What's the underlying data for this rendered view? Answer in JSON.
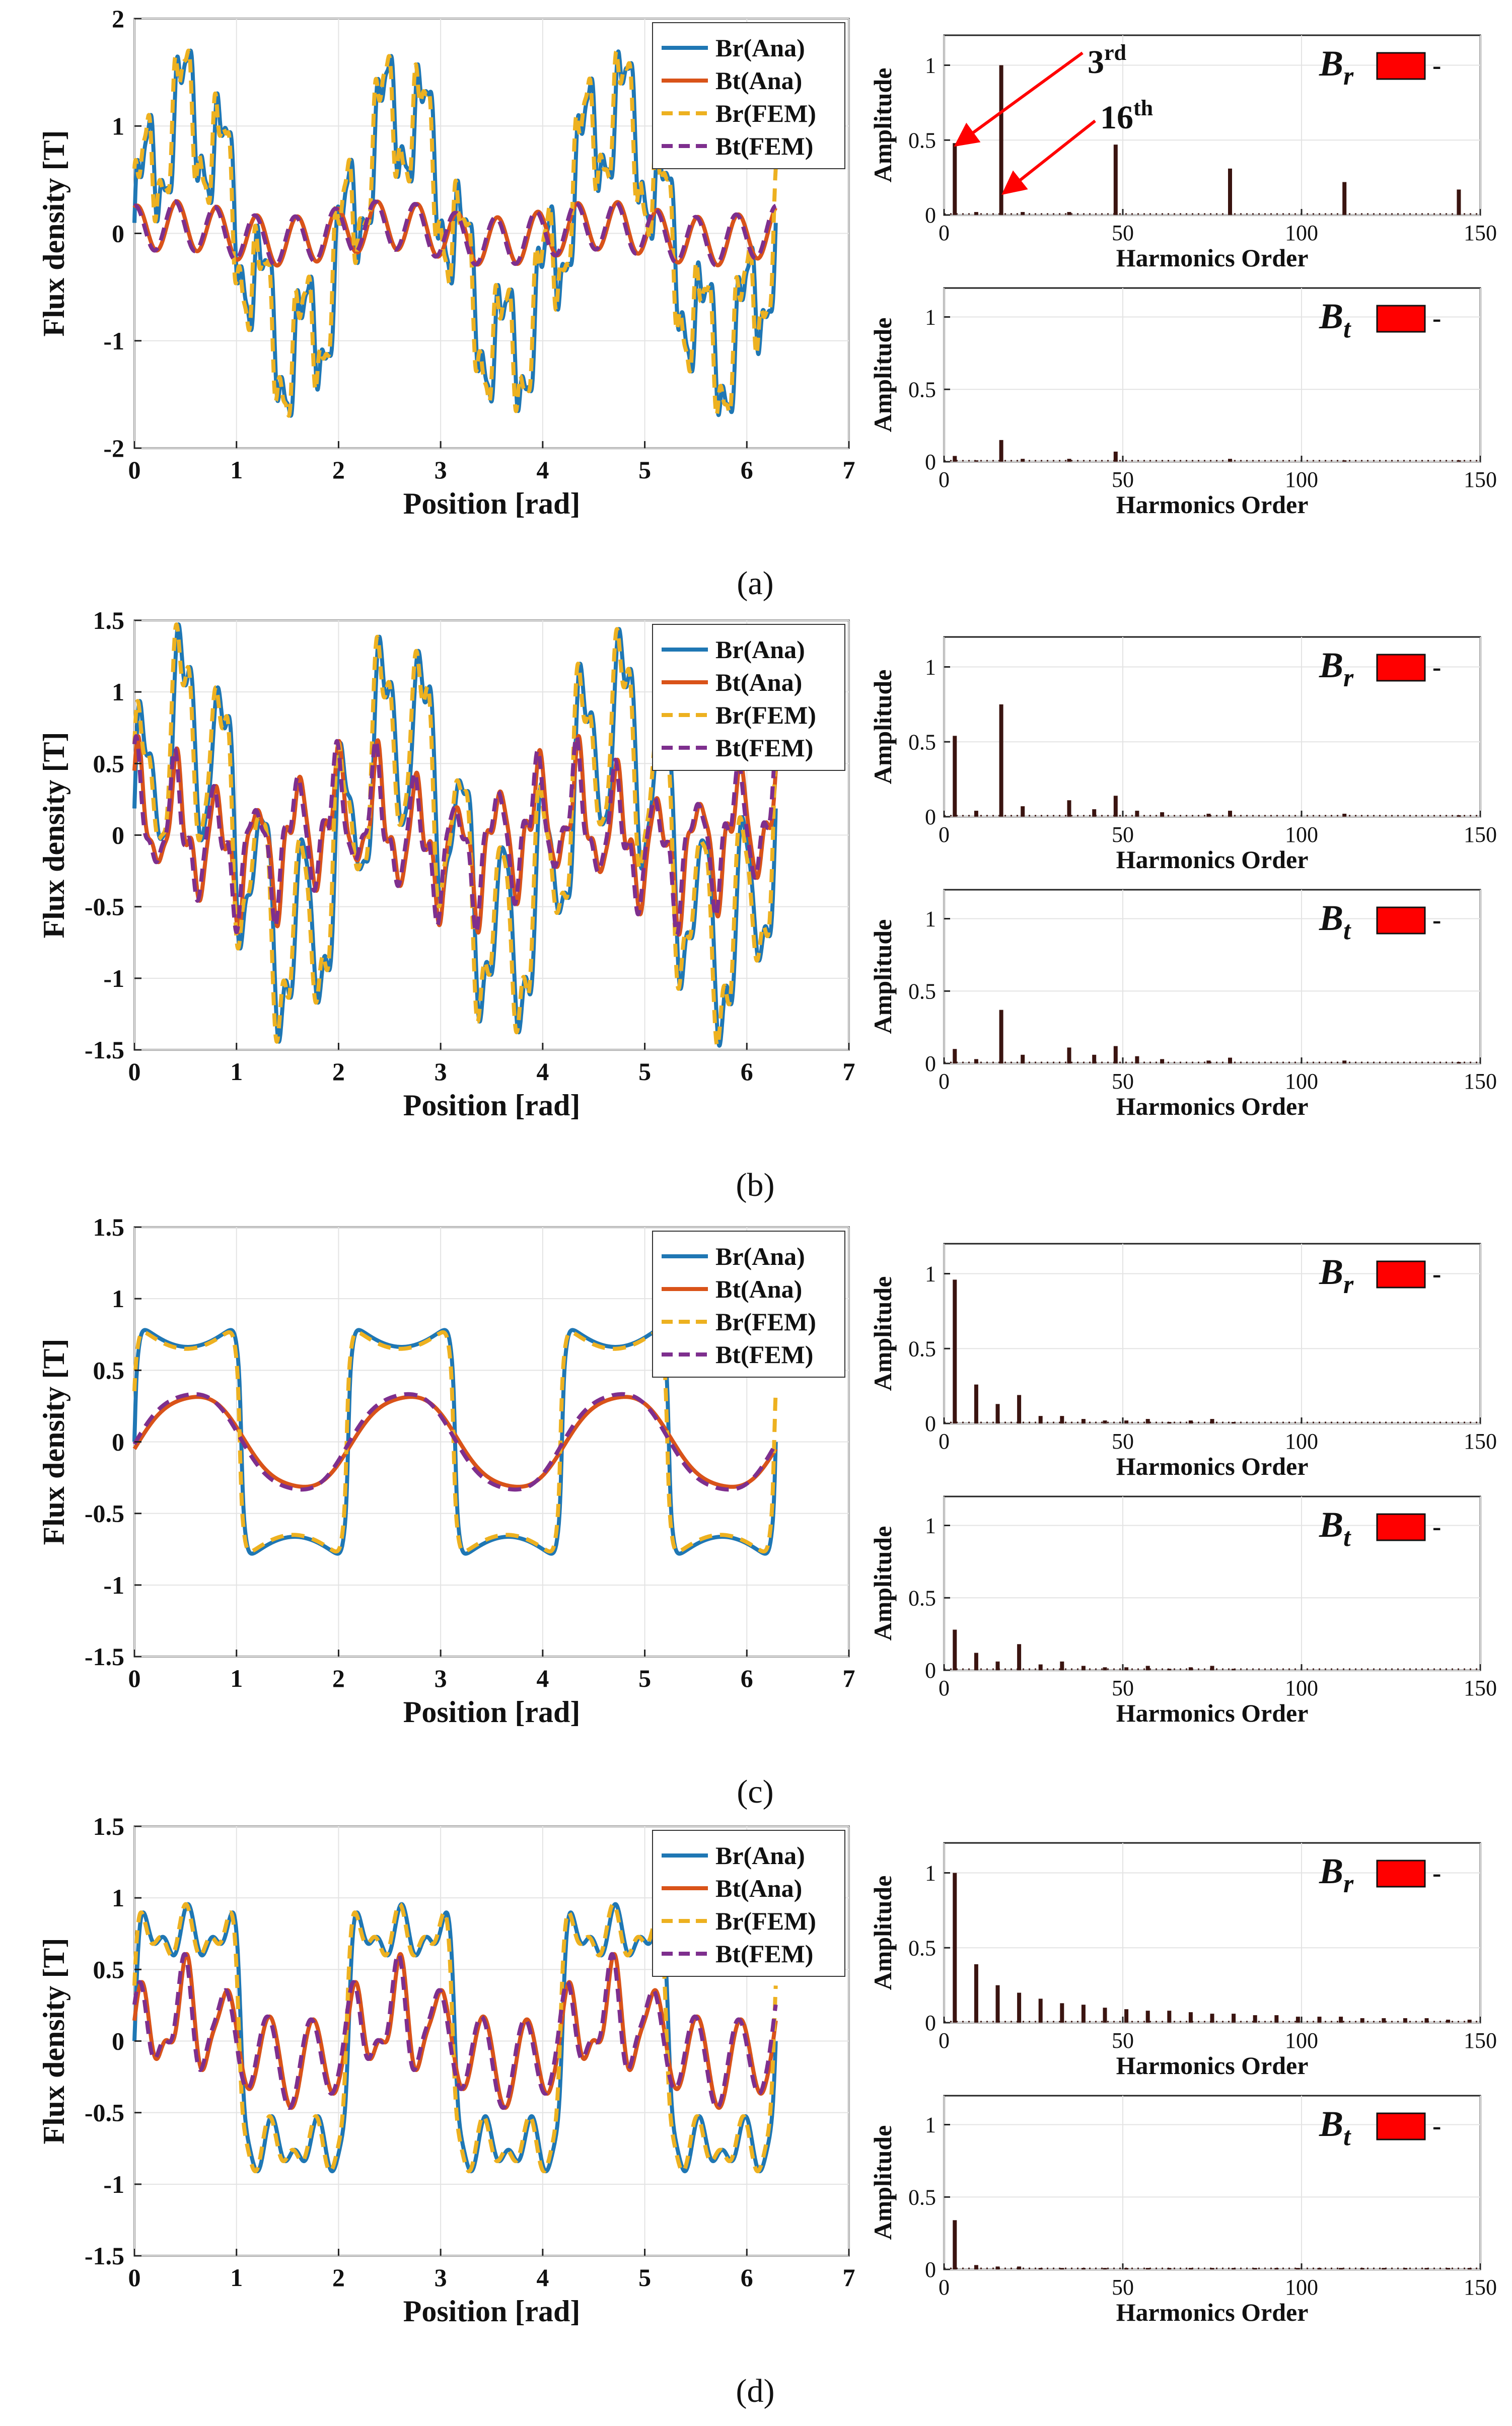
{
  "figure": {
    "panels": [
      {
        "label": "(a)",
        "annotations": [
          "3rd",
          "16th"
        ]
      },
      {
        "label": "(b)",
        "annotations": []
      },
      {
        "label": "(c)",
        "annotations": []
      },
      {
        "label": "(d)",
        "annotations": []
      }
    ],
    "dash": "-"
  },
  "colors": {
    "br_ana": "#1f77b4",
    "bt_ana": "#d95319",
    "br_fem": "#edb120",
    "bt_fem": "#7e2f8e",
    "stem": "#3a1410",
    "legend_box": "#ff0000",
    "arrow": "#ff0000"
  },
  "chart_data": [
    {
      "type": "line",
      "panel": "a",
      "title": "",
      "xlabel": "Position [rad]",
      "ylabel": "Flux density [T]",
      "xlim": [
        0,
        7
      ],
      "ylim": [
        -2,
        2
      ],
      "xticks": [
        0,
        1,
        2,
        3,
        4,
        5,
        6,
        7
      ],
      "yticks": [
        -2,
        -1,
        0,
        1,
        2
      ],
      "legend_position": "top-right",
      "series": [
        {
          "name": "Br(Ana)",
          "style": "solid",
          "color_key": "br_ana",
          "waveform": "br_a",
          "amplitude": 1.8,
          "phase": 0
        },
        {
          "name": "Bt(Ana)",
          "style": "solid",
          "color_key": "bt_ana",
          "waveform": "bt_a",
          "amplitude": 0.3,
          "phase": 0
        },
        {
          "name": "Br(FEM)",
          "style": "dashed",
          "color_key": "br_fem",
          "waveform": "br_a",
          "amplitude": 1.8,
          "phase": 0.02
        },
        {
          "name": "Bt(FEM)",
          "style": "dashed",
          "color_key": "bt_fem",
          "waveform": "bt_a",
          "amplitude": 0.3,
          "phase": 0.02
        }
      ]
    },
    {
      "type": "bar",
      "panel": "a",
      "component": "Br",
      "xlabel": "Harmonics Order",
      "ylabel": "Amplitude",
      "xlim": [
        0,
        150
      ],
      "ylim": [
        0,
        1.2
      ],
      "xticks": [
        0,
        50,
        100,
        150
      ],
      "yticks": [
        0,
        0.5,
        1
      ],
      "orders": [
        3,
        9,
        16,
        22,
        35,
        48,
        80,
        112,
        144
      ],
      "values": [
        0.48,
        0.02,
        1.0,
        0.02,
        0.02,
        0.47,
        0.31,
        0.22,
        0.17
      ]
    },
    {
      "type": "bar",
      "panel": "a",
      "component": "Bt",
      "xlabel": "Harmonics Order",
      "ylabel": "Amplitude",
      "xlim": [
        0,
        150
      ],
      "ylim": [
        0,
        1.2
      ],
      "xticks": [
        0,
        50,
        100,
        150
      ],
      "yticks": [
        0,
        0.5,
        1
      ],
      "orders": [
        3,
        9,
        16,
        22,
        35,
        48,
        80,
        112,
        144
      ],
      "values": [
        0.04,
        0.01,
        0.15,
        0.02,
        0.02,
        0.07,
        0.02,
        0.01,
        0.01
      ]
    },
    {
      "type": "line",
      "panel": "b",
      "title": "",
      "xlabel": "Position [rad]",
      "ylabel": "Flux density [T]",
      "xlim": [
        0,
        7
      ],
      "ylim": [
        -1.5,
        1.5
      ],
      "xticks": [
        0,
        1,
        2,
        3,
        4,
        5,
        6,
        7
      ],
      "yticks": [
        -1.5,
        -1,
        -0.5,
        0,
        0.5,
        1,
        1.5
      ],
      "legend_position": "top-right",
      "series": [
        {
          "name": "Br(Ana)",
          "style": "solid",
          "color_key": "br_ana",
          "waveform": "br_b",
          "amplitude": 1.4,
          "phase": 0
        },
        {
          "name": "Bt(Ana)",
          "style": "solid",
          "color_key": "bt_ana",
          "waveform": "bt_b",
          "amplitude": 0.7,
          "phase": 0
        },
        {
          "name": "Br(FEM)",
          "style": "dashed",
          "color_key": "br_fem",
          "waveform": "br_b",
          "amplitude": 1.4,
          "phase": 0.02
        },
        {
          "name": "Bt(FEM)",
          "style": "dashed",
          "color_key": "bt_fem",
          "waveform": "bt_b",
          "amplitude": 0.7,
          "phase": 0.02
        }
      ]
    },
    {
      "type": "bar",
      "panel": "b",
      "component": "Br",
      "xlabel": "Harmonics Order",
      "ylabel": "Amplitude",
      "xlim": [
        0,
        150
      ],
      "ylim": [
        0,
        1.2
      ],
      "xticks": [
        0,
        50,
        100,
        150
      ],
      "yticks": [
        0,
        0.5,
        1
      ],
      "orders": [
        3,
        9,
        16,
        22,
        35,
        42,
        48,
        54,
        61,
        74,
        80,
        112,
        144
      ],
      "values": [
        0.54,
        0.04,
        0.75,
        0.07,
        0.11,
        0.05,
        0.14,
        0.04,
        0.03,
        0.02,
        0.04,
        0.02,
        0.01
      ]
    },
    {
      "type": "bar",
      "panel": "b",
      "component": "Bt",
      "xlabel": "Harmonics Order",
      "ylabel": "Amplitude",
      "xlim": [
        0,
        150
      ],
      "ylim": [
        0,
        1.2
      ],
      "xticks": [
        0,
        50,
        100,
        150
      ],
      "yticks": [
        0,
        0.5,
        1
      ],
      "orders": [
        3,
        9,
        16,
        22,
        35,
        42,
        48,
        54,
        61,
        74,
        80,
        112,
        144
      ],
      "values": [
        0.1,
        0.03,
        0.37,
        0.06,
        0.11,
        0.06,
        0.12,
        0.05,
        0.03,
        0.02,
        0.04,
        0.02,
        0.01
      ]
    },
    {
      "type": "line",
      "panel": "c",
      "title": "",
      "xlabel": "Position [rad]",
      "ylabel": "Flux density [T]",
      "xlim": [
        0,
        7
      ],
      "ylim": [
        -1.5,
        1.5
      ],
      "xticks": [
        0,
        1,
        2,
        3,
        4,
        5,
        6,
        7
      ],
      "yticks": [
        -1.5,
        -1,
        -0.5,
        0,
        0.5,
        1,
        1.5
      ],
      "legend_position": "top-right",
      "series": [
        {
          "name": "Br(Ana)",
          "style": "solid",
          "color_key": "br_ana",
          "waveform": "br_c",
          "amplitude": 1.0,
          "phase": 0
        },
        {
          "name": "Bt(Ana)",
          "style": "solid",
          "color_key": "bt_ana",
          "waveform": "bt_c",
          "amplitude": 0.33,
          "phase": 0
        },
        {
          "name": "Br(FEM)",
          "style": "dashed",
          "color_key": "br_fem",
          "waveform": "br_c",
          "amplitude": 0.98,
          "phase": 0.015
        },
        {
          "name": "Bt(FEM)",
          "style": "dashed",
          "color_key": "bt_fem",
          "waveform": "bt_c",
          "amplitude": 0.35,
          "phase": 0.03
        }
      ]
    },
    {
      "type": "bar",
      "panel": "c",
      "component": "Br",
      "xlabel": "Harmonics Order",
      "ylabel": "Amplitude",
      "xlim": [
        0,
        150
      ],
      "ylim": [
        0,
        1.2
      ],
      "xticks": [
        0,
        50,
        100,
        150
      ],
      "yticks": [
        0,
        0.5,
        1
      ],
      "orders": [
        3,
        9,
        15,
        21,
        27,
        33,
        39,
        45,
        51,
        57,
        63,
        69,
        75,
        81
      ],
      "values": [
        0.96,
        0.26,
        0.13,
        0.19,
        0.05,
        0.05,
        0.03,
        0.02,
        0.02,
        0.03,
        0.01,
        0.02,
        0.03,
        0.01
      ]
    },
    {
      "type": "bar",
      "panel": "c",
      "component": "Bt",
      "xlabel": "Harmonics Order",
      "ylabel": "Amplitude",
      "xlim": [
        0,
        150
      ],
      "ylim": [
        0,
        1.2
      ],
      "xticks": [
        0,
        50,
        100,
        150
      ],
      "yticks": [
        0,
        0.5,
        1
      ],
      "orders": [
        3,
        9,
        15,
        21,
        27,
        33,
        39,
        45,
        51,
        57,
        63,
        69,
        75,
        81
      ],
      "values": [
        0.28,
        0.12,
        0.06,
        0.18,
        0.04,
        0.06,
        0.03,
        0.02,
        0.02,
        0.03,
        0.01,
        0.02,
        0.03,
        0.01
      ]
    },
    {
      "type": "line",
      "panel": "d",
      "title": "",
      "xlabel": "Position [rad]",
      "ylabel": "Flux density [T]",
      "xlim": [
        0,
        7
      ],
      "ylim": [
        -1.5,
        1.5
      ],
      "xticks": [
        0,
        1,
        2,
        3,
        4,
        5,
        6,
        7
      ],
      "yticks": [
        -1.5,
        -1,
        -0.5,
        0,
        0.5,
        1,
        1.5
      ],
      "legend_position": "top-right",
      "series": [
        {
          "name": "Br(Ana)",
          "style": "solid",
          "color_key": "br_ana",
          "waveform": "br_d",
          "amplitude": 1.0,
          "phase": 0
        },
        {
          "name": "Bt(Ana)",
          "style": "solid",
          "color_key": "bt_ana",
          "waveform": "bt_d",
          "amplitude": 0.85,
          "phase": 0
        },
        {
          "name": "Br(FEM)",
          "style": "dashed",
          "color_key": "br_fem",
          "waveform": "br_d",
          "amplitude": 1.0,
          "phase": 0.02
        },
        {
          "name": "Bt(FEM)",
          "style": "dashed",
          "color_key": "bt_fem",
          "waveform": "bt_d",
          "amplitude": 0.85,
          "phase": 0.02
        }
      ]
    },
    {
      "type": "bar",
      "panel": "d",
      "component": "Br",
      "xlabel": "Harmonics Order",
      "ylabel": "Amplitude",
      "xlim": [
        0,
        150
      ],
      "ylim": [
        0,
        1.2
      ],
      "xticks": [
        0,
        50,
        100,
        150
      ],
      "yticks": [
        0,
        0.5,
        1
      ],
      "orders": [
        3,
        9,
        15,
        21,
        27,
        33,
        39,
        45,
        51,
        57,
        63,
        69,
        75,
        81,
        87,
        93,
        99,
        105,
        111,
        117,
        123,
        129,
        135,
        141,
        147
      ],
      "values": [
        1.0,
        0.39,
        0.25,
        0.2,
        0.16,
        0.13,
        0.12,
        0.1,
        0.09,
        0.08,
        0.08,
        0.07,
        0.06,
        0.06,
        0.05,
        0.05,
        0.04,
        0.04,
        0.04,
        0.03,
        0.03,
        0.03,
        0.03,
        0.02,
        0.02
      ]
    },
    {
      "type": "bar",
      "panel": "d",
      "component": "Bt",
      "xlabel": "Harmonics Order",
      "ylabel": "Amplitude",
      "xlim": [
        0,
        150
      ],
      "ylim": [
        0,
        1.2
      ],
      "xticks": [
        0,
        50,
        100,
        150
      ],
      "yticks": [
        0,
        0.5,
        1
      ],
      "orders": [
        3,
        9,
        15,
        21,
        27,
        33,
        39,
        45,
        51,
        57,
        63,
        69,
        75,
        81,
        87,
        93,
        99,
        105,
        111,
        117,
        123,
        129,
        135,
        141,
        147
      ],
      "values": [
        0.34,
        0.03,
        0.02,
        0.02,
        0.01,
        0.01,
        0.01,
        0.01,
        0.01,
        0.01,
        0.01,
        0.01,
        0.01,
        0.01,
        0.01,
        0.01,
        0.01,
        0.01,
        0.01,
        0.01,
        0.01,
        0.01,
        0.01,
        0.01,
        0.01
      ]
    }
  ]
}
